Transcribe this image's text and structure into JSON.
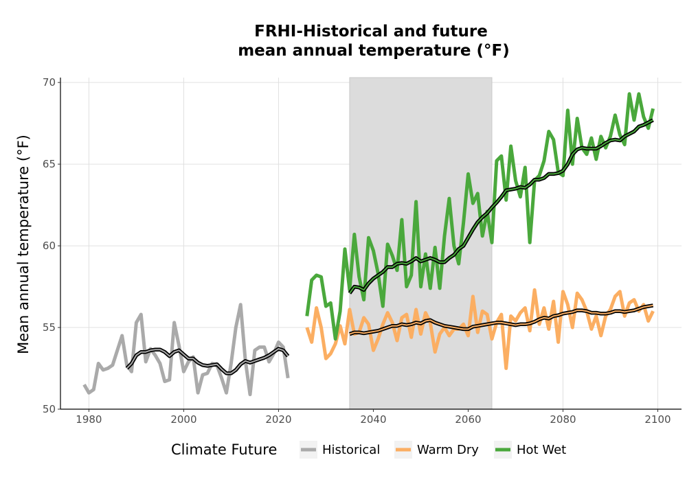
{
  "chart_data": {
    "type": "line",
    "title_line1": "FRHI-Historical and future",
    "title_line2": "mean annual temperature (°F)",
    "xlabel": "",
    "ylabel": "Mean annual temperature (°F)",
    "xlim": [
      1974,
      2105
    ],
    "ylim": [
      50,
      70.3
    ],
    "x_ticks": [
      1980,
      2000,
      2020,
      2040,
      2060,
      2080,
      2100
    ],
    "y_ticks": [
      50,
      55,
      60,
      65,
      70
    ],
    "grid": true,
    "shaded_period": [
      2035,
      2065
    ],
    "shade_color": "#dcdcdc",
    "legend": {
      "position": "bottom",
      "title": "Climate Future",
      "items": [
        {
          "label": "Historical",
          "color": "#aaaaaa"
        },
        {
          "label": "Warm Dry",
          "color": "#fbae62"
        },
        {
          "label": "Hot Wet",
          "color": "#4aa83c"
        }
      ]
    },
    "series": [
      {
        "name": "Historical",
        "color": "#aaaaaa",
        "x": [
          1979,
          1980,
          1981,
          1982,
          1983,
          1984,
          1985,
          1986,
          1987,
          1988,
          1989,
          1990,
          1991,
          1992,
          1993,
          1994,
          1995,
          1996,
          1997,
          1998,
          1999,
          2000,
          2001,
          2002,
          2003,
          2004,
          2005,
          2006,
          2007,
          2008,
          2009,
          2010,
          2011,
          2012,
          2013,
          2014,
          2015,
          2016,
          2017,
          2018,
          2019,
          2020,
          2021,
          2022
        ],
        "values": [
          51.5,
          51.0,
          51.2,
          52.8,
          52.4,
          52.5,
          52.7,
          53.6,
          54.5,
          52.7,
          52.3,
          55.3,
          55.8,
          52.9,
          53.7,
          53.3,
          52.8,
          51.7,
          51.8,
          55.3,
          53.9,
          52.3,
          52.9,
          53.2,
          51.0,
          52.1,
          52.2,
          52.8,
          52.7,
          51.9,
          51.0,
          52.8,
          55.0,
          56.4,
          53.0,
          50.9,
          53.6,
          53.8,
          53.8,
          52.9,
          53.4,
          54.1,
          53.8,
          51.9
        ],
        "smoothed_x": [
          1988,
          1989,
          1990,
          1991,
          1992,
          1993,
          1994,
          1995,
          1996,
          1997,
          1998,
          1999,
          2000,
          2001,
          2002,
          2003,
          2004,
          2005,
          2006,
          2007,
          2008,
          2009,
          2010,
          2011,
          2012,
          2013,
          2014,
          2015,
          2016,
          2017,
          2018,
          2019,
          2020,
          2021,
          2022
        ],
        "smoothed_values": [
          52.5,
          52.8,
          53.3,
          53.5,
          53.5,
          53.6,
          53.65,
          53.65,
          53.5,
          53.25,
          53.5,
          53.6,
          53.35,
          53.1,
          53.1,
          52.85,
          52.7,
          52.65,
          52.7,
          52.75,
          52.45,
          52.2,
          52.2,
          52.4,
          52.75,
          52.95,
          52.85,
          52.95,
          53.05,
          53.15,
          53.3,
          53.5,
          53.7,
          53.6,
          53.25
        ]
      },
      {
        "name": "Warm Dry",
        "color": "#fbae62",
        "x": [
          2026,
          2027,
          2028,
          2029,
          2030,
          2031,
          2032,
          2033,
          2034,
          2035,
          2036,
          2037,
          2038,
          2039,
          2040,
          2041,
          2042,
          2043,
          2044,
          2045,
          2046,
          2047,
          2048,
          2049,
          2050,
          2051,
          2052,
          2053,
          2054,
          2055,
          2056,
          2057,
          2058,
          2059,
          2060,
          2061,
          2062,
          2063,
          2064,
          2065,
          2066,
          2067,
          2068,
          2069,
          2070,
          2071,
          2072,
          2073,
          2074,
          2075,
          2076,
          2077,
          2078,
          2079,
          2080,
          2081,
          2082,
          2083,
          2084,
          2085,
          2086,
          2087,
          2088,
          2089,
          2090,
          2091,
          2092,
          2093,
          2094,
          2095,
          2096,
          2097,
          2098,
          2099
        ],
        "values": [
          55.0,
          54.1,
          56.2,
          55.0,
          53.1,
          53.4,
          54.0,
          55.1,
          54.0,
          56.1,
          54.6,
          54.7,
          55.6,
          55.2,
          53.6,
          54.3,
          55.2,
          55.9,
          55.3,
          54.2,
          55.6,
          55.8,
          54.4,
          56.1,
          54.6,
          55.9,
          55.3,
          53.5,
          54.6,
          55.0,
          54.5,
          54.9,
          54.9,
          55.2,
          54.5,
          56.9,
          54.7,
          56.0,
          55.8,
          54.3,
          55.3,
          55.8,
          52.5,
          55.7,
          55.4,
          55.9,
          56.2,
          54.8,
          57.3,
          55.2,
          56.2,
          54.9,
          56.6,
          54.1,
          57.2,
          56.4,
          55.0,
          57.1,
          56.7,
          56.0,
          54.9,
          55.7,
          54.5,
          55.7,
          56.1,
          56.9,
          57.2,
          55.7,
          56.5,
          56.7,
          56.0,
          56.4,
          55.4,
          56.0
        ],
        "smoothed_x": [
          2035,
          2036,
          2037,
          2038,
          2039,
          2040,
          2041,
          2042,
          2043,
          2044,
          2045,
          2046,
          2047,
          2048,
          2049,
          2050,
          2051,
          2052,
          2053,
          2054,
          2055,
          2056,
          2057,
          2058,
          2059,
          2060,
          2061,
          2062,
          2063,
          2064,
          2065,
          2066,
          2067,
          2068,
          2069,
          2070,
          2071,
          2072,
          2073,
          2074,
          2075,
          2076,
          2077,
          2078,
          2079,
          2080,
          2081,
          2082,
          2083,
          2084,
          2085,
          2086,
          2087,
          2088,
          2089,
          2090,
          2091,
          2092,
          2093,
          2094,
          2095,
          2096,
          2097,
          2098,
          2099
        ],
        "smoothed_values": [
          54.6,
          54.7,
          54.7,
          54.65,
          54.7,
          54.75,
          54.8,
          54.9,
          55.0,
          55.1,
          55.1,
          55.2,
          55.15,
          55.2,
          55.3,
          55.25,
          55.4,
          55.45,
          55.3,
          55.2,
          55.1,
          55.05,
          55.0,
          54.95,
          54.9,
          54.9,
          55.05,
          55.1,
          55.15,
          55.2,
          55.25,
          55.3,
          55.3,
          55.25,
          55.2,
          55.15,
          55.2,
          55.2,
          55.25,
          55.35,
          55.5,
          55.6,
          55.55,
          55.7,
          55.75,
          55.85,
          55.9,
          55.95,
          56.05,
          56.05,
          56.0,
          55.9,
          55.9,
          55.85,
          55.85,
          55.9,
          56.0,
          56.0,
          55.95,
          56.0,
          56.05,
          56.15,
          56.25,
          56.3,
          56.35
        ]
      },
      {
        "name": "Hot Wet",
        "color": "#4aa83c",
        "x": [
          2026,
          2027,
          2028,
          2029,
          2030,
          2031,
          2032,
          2033,
          2034,
          2035,
          2036,
          2037,
          2038,
          2039,
          2040,
          2041,
          2042,
          2043,
          2044,
          2045,
          2046,
          2047,
          2048,
          2049,
          2050,
          2051,
          2052,
          2053,
          2054,
          2055,
          2056,
          2057,
          2058,
          2059,
          2060,
          2061,
          2062,
          2063,
          2064,
          2065,
          2066,
          2067,
          2068,
          2069,
          2070,
          2071,
          2072,
          2073,
          2074,
          2075,
          2076,
          2077,
          2078,
          2079,
          2080,
          2081,
          2082,
          2083,
          2084,
          2085,
          2086,
          2087,
          2088,
          2089,
          2090,
          2091,
          2092,
          2093,
          2094,
          2095,
          2096,
          2097,
          2098,
          2099
        ],
        "values": [
          55.7,
          57.9,
          58.2,
          58.1,
          56.3,
          56.5,
          54.3,
          56.0,
          59.8,
          57.3,
          60.7,
          58.1,
          56.7,
          60.5,
          59.7,
          58.3,
          56.3,
          60.1,
          59.4,
          58.5,
          61.6,
          57.5,
          58.2,
          62.7,
          57.5,
          59.5,
          57.4,
          59.9,
          57.4,
          60.6,
          62.9,
          60.0,
          58.9,
          61.4,
          64.4,
          62.6,
          63.2,
          60.6,
          62.1,
          60.2,
          65.2,
          65.5,
          62.8,
          66.1,
          64.0,
          63.0,
          64.8,
          60.2,
          64.0,
          64.3,
          65.2,
          67.0,
          66.5,
          64.5,
          64.3,
          68.3,
          65.0,
          67.8,
          66.0,
          65.6,
          66.6,
          65.3,
          66.7,
          66.0,
          66.7,
          68.0,
          66.8,
          66.2,
          69.3,
          67.7,
          69.3,
          67.9,
          67.2,
          68.4
        ],
        "smoothed_x": [
          2035,
          2036,
          2037,
          2038,
          2039,
          2040,
          2041,
          2042,
          2043,
          2044,
          2045,
          2046,
          2047,
          2048,
          2049,
          2050,
          2051,
          2052,
          2053,
          2054,
          2055,
          2056,
          2057,
          2058,
          2059,
          2060,
          2061,
          2062,
          2063,
          2064,
          2065,
          2066,
          2067,
          2068,
          2069,
          2070,
          2071,
          2072,
          2073,
          2074,
          2075,
          2076,
          2077,
          2078,
          2079,
          2080,
          2081,
          2082,
          2083,
          2084,
          2085,
          2086,
          2087,
          2088,
          2089,
          2090,
          2091,
          2092,
          2093,
          2094,
          2095,
          2096,
          2097,
          2098,
          2099
        ],
        "smoothed_values": [
          57.1,
          57.5,
          57.45,
          57.3,
          57.7,
          58.0,
          58.2,
          58.4,
          58.7,
          58.7,
          58.9,
          58.95,
          58.9,
          59.05,
          59.25,
          59.05,
          59.15,
          59.25,
          59.15,
          59.0,
          59.0,
          59.25,
          59.45,
          59.8,
          60.0,
          60.5,
          61.0,
          61.45,
          61.75,
          62.0,
          62.35,
          62.65,
          63.0,
          63.4,
          63.45,
          63.5,
          63.6,
          63.55,
          63.75,
          64.05,
          64.05,
          64.15,
          64.4,
          64.4,
          64.45,
          64.6,
          65.0,
          65.6,
          65.9,
          66.0,
          65.95,
          65.95,
          65.95,
          66.1,
          66.3,
          66.45,
          66.5,
          66.45,
          66.7,
          66.85,
          67.0,
          67.3,
          67.4,
          67.55,
          67.7
        ]
      }
    ]
  }
}
